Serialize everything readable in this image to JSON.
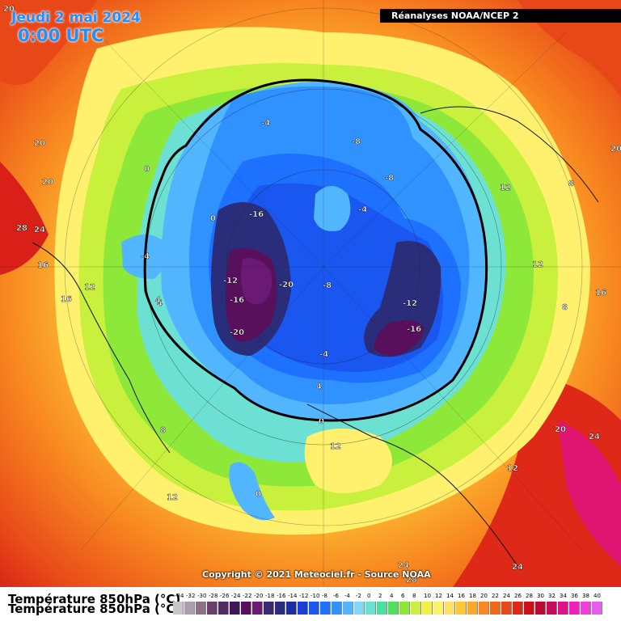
{
  "header": {
    "date_title": "Jeudi 2 mai 2024",
    "time_title": "0:00 UTC",
    "source_banner": "Réanalyses NOAA/NCEP 2",
    "copyright": "Copyright © 2021 Meteociel.fr - Source NOAA"
  },
  "legend": {
    "variable_title": "Température 850hPa (°C)",
    "values": [
      "-34",
      "-32",
      "-30",
      "-28",
      "-26",
      "-24",
      "-22",
      "-20",
      "-18",
      "-16",
      "-14",
      "-12",
      "-10",
      "-8",
      "-6",
      "-4",
      "-2",
      "0",
      "2",
      "4",
      "6",
      "8",
      "10",
      "12",
      "14",
      "16",
      "18",
      "20",
      "22",
      "24",
      "26",
      "28",
      "30",
      "32",
      "34",
      "36",
      "38",
      "40"
    ],
    "colors": [
      "#c8c8c8",
      "#a8a0a8",
      "#8c7088",
      "#6a4068",
      "#502a60",
      "#3c1658",
      "#58105c",
      "#6a1a74",
      "#3a2870",
      "#2a2d7a",
      "#1d2ea2",
      "#1a3fd8",
      "#1a56f0",
      "#1e70ff",
      "#2f92ff",
      "#52b6ff",
      "#84d6f8",
      "#6ce0d2",
      "#48e0a0",
      "#4fe060",
      "#8ee83a",
      "#c8f03c",
      "#f0f040",
      "#fff06e",
      "#fde066",
      "#fcc838",
      "#fca82a",
      "#f88820",
      "#f06818",
      "#e84818",
      "#de2818",
      "#d01018",
      "#bc0a30",
      "#c80a5a",
      "#e0108a",
      "#f020b8",
      "#f040d8",
      "#e85cf0"
    ]
  },
  "map": {
    "contour_labels": [
      {
        "text": "20"
      },
      {
        "text": "20"
      },
      {
        "text": "20"
      },
      {
        "text": "28"
      },
      {
        "text": "24"
      },
      {
        "text": "16"
      },
      {
        "text": "16"
      },
      {
        "text": "12"
      },
      {
        "text": "4"
      },
      {
        "text": "-4"
      },
      {
        "text": "0"
      },
      {
        "text": "0"
      },
      {
        "text": "-16"
      },
      {
        "text": "-12"
      },
      {
        "text": "-20"
      },
      {
        "text": "-16"
      },
      {
        "text": "-20"
      },
      {
        "text": "-4"
      },
      {
        "text": "-8"
      },
      {
        "text": "-8"
      },
      {
        "text": "-4"
      },
      {
        "text": "-8"
      },
      {
        "text": "-12"
      },
      {
        "text": "-16"
      },
      {
        "text": "-4"
      },
      {
        "text": "4"
      },
      {
        "text": "0"
      },
      {
        "text": "12"
      },
      {
        "text": "8"
      },
      {
        "text": "12"
      },
      {
        "text": "12"
      },
      {
        "text": "8"
      },
      {
        "text": "16"
      },
      {
        "text": "20"
      },
      {
        "text": "24"
      },
      {
        "text": "12"
      },
      {
        "text": "0"
      },
      {
        "text": "12"
      },
      {
        "text": "24"
      },
      {
        "text": "24"
      },
      {
        "text": "28"
      },
      {
        "text": "8"
      },
      {
        "text": "20"
      },
      {
        "text": "4"
      }
    ]
  }
}
